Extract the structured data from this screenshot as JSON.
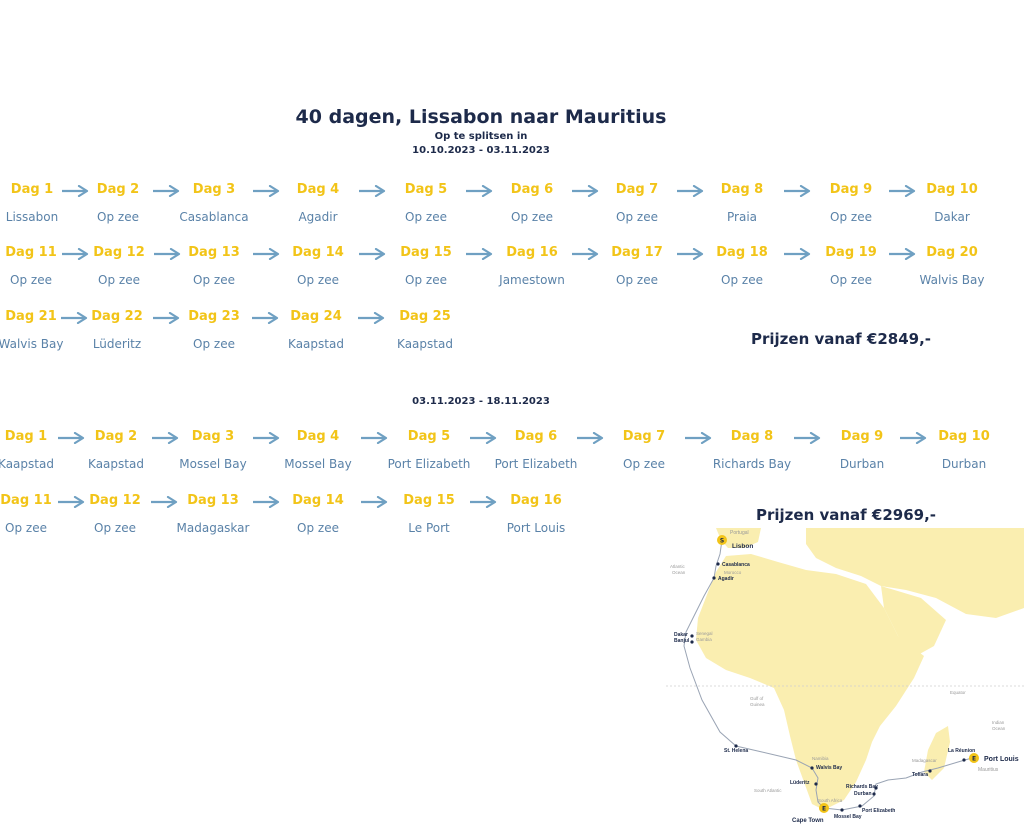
{
  "header": {
    "title": "40 dagen, Lissabon naar Mauritius",
    "split_note": "Op te splitsen in",
    "period1": "10.10.2023 - 03.11.2023",
    "period2": "03.11.2023 - 18.11.2023"
  },
  "leg1": {
    "rows": [
      {
        "days": [
          "Dag 1",
          "Dag 2",
          "Dag 3",
          "Dag 4",
          "Dag 5",
          "Dag 6",
          "Dag 7",
          "Dag 8",
          "Dag 9",
          "Dag 10"
        ],
        "locs": [
          "Lissabon",
          "Op zee",
          "Casablanca",
          "Agadir",
          "Op zee",
          "Op zee",
          "Op zee",
          "Praia",
          "Op zee",
          "Dakar"
        ]
      },
      {
        "days": [
          "Dag 11",
          "Dag 12",
          "Dag 13",
          "Dag 14",
          "Dag 15",
          "Dag 16",
          "Dag 17",
          "Dag 18",
          "Dag 19",
          "Dag 20"
        ],
        "locs": [
          "Op zee",
          "Op zee",
          "Op zee",
          "Op zee",
          "Op zee",
          "Jamestown",
          "Op zee",
          "Op zee",
          "Op zee",
          "Walvis Bay"
        ]
      },
      {
        "days": [
          "Dag 21",
          "Dag 22",
          "Dag 23",
          "Dag 24",
          "Dag 25"
        ],
        "locs": [
          "Walvis Bay",
          "Lüderitz",
          "Op zee",
          "Kaapstad",
          "Kaapstad"
        ]
      }
    ],
    "price": "Prijzen vanaf €2849,-"
  },
  "leg2": {
    "rows": [
      {
        "days": [
          "Dag 1",
          "Dag 2",
          "Dag 3",
          "Dag 4",
          "Dag 5",
          "Dag 6",
          "Dag 7",
          "Dag 8",
          "Dag 9",
          "Dag 10"
        ],
        "locs": [
          "Kaapstad",
          "Kaapstad",
          "Mossel Bay",
          "Mossel Bay",
          "Port Elizabeth",
          "Port Elizabeth",
          "Op zee",
          "Richards Bay",
          "Durban",
          "Durban"
        ]
      },
      {
        "days": [
          "Dag 11",
          "Dag 12",
          "Dag 13",
          "Dag 14",
          "Dag 15",
          "Dag 16"
        ],
        "locs": [
          "Op zee",
          "Op zee",
          "Madagaskar",
          "Op zee",
          "Le Port",
          "Port Louis"
        ]
      }
    ],
    "price": "Prijzen vanaf €2969,-"
  },
  "map": {
    "labels": {
      "portugal": "Portugal",
      "lisbon": "Lisbon",
      "casablanca": "Casablanca",
      "morocco": "Morocco",
      "agadir": "Agadir",
      "atlantic": "Atlantic",
      "ocean": "Ocean",
      "dakar": "Dakar",
      "banjul": "Banjul",
      "senegal": "Senegal",
      "gambia": "Gambia",
      "gulf": "Gulf of",
      "guinea": "Guinea",
      "equator": "Equator",
      "st_helena": "St. Helena",
      "namibia": "Namibia",
      "walvis": "Walvis Bay",
      "luderitz": "Lüderitz",
      "south_atlantic": "South Atlantic",
      "richards": "Richards Bay",
      "durban": "Durban",
      "south_africa": "South Africa",
      "port_elizabeth": "Port Elizabeth",
      "cape_town": "Cape Town",
      "mossel": "Mossel Bay",
      "madagascar": "Madagascar",
      "toliara": "Toliara",
      "reunion": "La Réunion",
      "port_louis": "Port Louis",
      "mauritius": "Mauritius",
      "indian": "Indian",
      "indian_ocean": "Ocean",
      "badge_start": "S",
      "badge_mid": "E",
      "badge_end": "E"
    }
  },
  "colors": {
    "navy": "#1d2a4a",
    "yellow": "#f2c418",
    "blue": "#5a82a8",
    "arrow": "#6fa0c2",
    "land": "#faeeb0"
  }
}
